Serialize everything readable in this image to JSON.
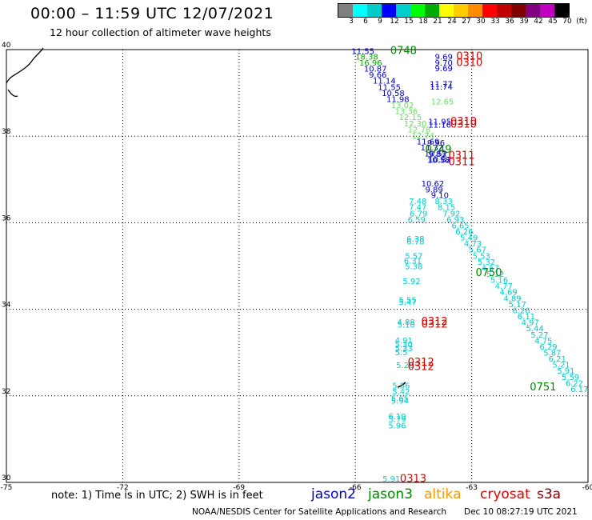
{
  "header": {
    "title": "00:00 – 11:59 UTC 12/07/2021",
    "subtitle": "12 hour collection of altimeter wave heights"
  },
  "legend": {
    "labels": [
      "3",
      "6",
      "9",
      "12",
      "15",
      "18",
      "21",
      "24",
      "27",
      "30",
      "33",
      "36",
      "39",
      "42",
      "45",
      "70",
      "(ft)"
    ],
    "colors": [
      "#808080",
      "#00ffff",
      "#00cccc",
      "#0000ff",
      "#00cdcd",
      "#00ff00",
      "#00aa00",
      "#ffff00",
      "#ffcc00",
      "#ff8c00",
      "#ff0000",
      "#c00000",
      "#800000",
      "#800080",
      "#c000c0",
      "#000000"
    ]
  },
  "map": {
    "lat_labels": [
      "40",
      "38",
      "36",
      "34",
      "32",
      "30"
    ],
    "lon_labels": [
      "-75",
      "-72",
      "-69",
      "-66",
      "-63",
      "-60"
    ],
    "extent": {
      "lon": [
        -75,
        -60
      ],
      "lat": [
        30,
        40
      ]
    }
  },
  "tracks": [
    {
      "time": "0748",
      "color": "#008800",
      "lon": -65.1,
      "lat": 39.9
    },
    {
      "time": "0749",
      "color": "#008800",
      "lon": -64.2,
      "lat": 37.62
    },
    {
      "time": "0750",
      "color": "#008800",
      "lon": -62.9,
      "lat": 34.77
    },
    {
      "time": "0751",
      "color": "#008800",
      "lon": -61.5,
      "lat": 32.13
    },
    {
      "time": "0310",
      "color": "#dd0000",
      "lon": -63.4,
      "lat": 39.77
    },
    {
      "time": "0310",
      "color": "#dd0000",
      "lon": -63.4,
      "lat": 39.62
    },
    {
      "time": "0310",
      "color": "#dd0000",
      "lon": -63.55,
      "lat": 38.26
    },
    {
      "time": "0310",
      "color": "#dd0000",
      "lon": -63.55,
      "lat": 38.2
    },
    {
      "time": "0311",
      "color": "#dd0000",
      "lon": -63.6,
      "lat": 37.48
    },
    {
      "time": "0311",
      "color": "#dd0000",
      "lon": -63.6,
      "lat": 37.33
    },
    {
      "time": "0312",
      "color": "#dd0000",
      "lon": -64.3,
      "lat": 33.64
    },
    {
      "time": "0312",
      "color": "#dd0000",
      "lon": -64.3,
      "lat": 33.58
    },
    {
      "time": "0312",
      "color": "#dd0000",
      "lon": -64.65,
      "lat": 32.7
    },
    {
      "time": "0312",
      "color": "#dd0000",
      "lon": -64.65,
      "lat": 32.6
    },
    {
      "time": "0313",
      "color": "#dd0000",
      "lon": -64.85,
      "lat": 30.01
    }
  ],
  "observations": [
    {
      "v": "11.55",
      "c": "#0000cc",
      "lon": -66.1,
      "lat": 39.9
    },
    {
      "v": "18.38",
      "c": "#00aa00",
      "lon": -66.0,
      "lat": 39.77
    },
    {
      "v": "16.96",
      "c": "#00aa00",
      "lon": -65.9,
      "lat": 39.63
    },
    {
      "v": "10.87",
      "c": "#0000cc",
      "lon": -65.78,
      "lat": 39.49
    },
    {
      "v": "9.66",
      "c": "#0000cc",
      "lon": -65.65,
      "lat": 39.35
    },
    {
      "v": "11.14",
      "c": "#0000cc",
      "lon": -65.55,
      "lat": 39.21
    },
    {
      "v": "11.55",
      "c": "#0000cc",
      "lon": -65.42,
      "lat": 39.07
    },
    {
      "v": "10.58",
      "c": "#0000cc",
      "lon": -65.32,
      "lat": 38.93
    },
    {
      "v": "11.98",
      "c": "#0000cc",
      "lon": -65.2,
      "lat": 38.79
    },
    {
      "v": "13.02",
      "c": "#66dd66",
      "lon": -65.08,
      "lat": 38.65
    },
    {
      "v": "13.36",
      "c": "#66dd66",
      "lon": -64.98,
      "lat": 38.51
    },
    {
      "v": "12.15",
      "c": "#66dd66",
      "lon": -64.88,
      "lat": 38.37
    },
    {
      "v": "12.30",
      "c": "#66dd66",
      "lon": -64.75,
      "lat": 38.23
    },
    {
      "v": "12.78",
      "c": "#66dd66",
      "lon": -64.65,
      "lat": 38.09
    },
    {
      "v": "12.74",
      "c": "#66dd66",
      "lon": -64.55,
      "lat": 37.95
    },
    {
      "v": "11.69",
      "c": "#0000cc",
      "lon": -64.42,
      "lat": 37.81
    },
    {
      "v": "11.32",
      "c": "#0000cc",
      "lon": -64.32,
      "lat": 37.67
    },
    {
      "v": "10.52",
      "c": "#0000cc",
      "lon": -64.22,
      "lat": 37.53
    },
    {
      "v": "10.82",
      "c": "#0000cc",
      "lon": -64.12,
      "lat": 37.39
    },
    {
      "v": "9.69",
      "c": "#0000cc",
      "lon": -63.95,
      "lat": 39.77
    },
    {
      "v": "9.70",
      "c": "#0000cc",
      "lon": -63.95,
      "lat": 39.63
    },
    {
      "v": "9.69",
      "c": "#0000cc",
      "lon": -63.95,
      "lat": 39.5
    },
    {
      "v": "11.77",
      "c": "#0000cc",
      "lon": -64.08,
      "lat": 39.14
    },
    {
      "v": "11.74",
      "c": "#0000cc",
      "lon": -64.08,
      "lat": 39.08
    },
    {
      "v": "12.65",
      "c": "#66dd66",
      "lon": -64.05,
      "lat": 38.73
    },
    {
      "v": "11.95",
      "c": "#0000cc",
      "lon": -64.12,
      "lat": 38.27
    },
    {
      "v": "11.16",
      "c": "#0000cc",
      "lon": -64.12,
      "lat": 38.2
    },
    {
      "v": "9.96",
      "c": "#0000cc",
      "lon": -64.15,
      "lat": 37.78
    },
    {
      "v": "9.83",
      "c": "#0000cc",
      "lon": -64.12,
      "lat": 37.52
    },
    {
      "v": "10.58",
      "c": "#0000cc",
      "lon": -64.15,
      "lat": 37.38
    },
    {
      "v": "10.62",
      "c": "#0000cc",
      "lon": -64.3,
      "lat": 36.84
    },
    {
      "v": "9.89",
      "c": "#0000cc",
      "lon": -64.2,
      "lat": 36.7
    },
    {
      "v": "9.10",
      "c": "#0000cc",
      "lon": -64.05,
      "lat": 36.57
    },
    {
      "v": "8.33",
      "c": "#00cccc",
      "lon": -63.95,
      "lat": 36.43
    },
    {
      "v": "8.15",
      "c": "#00cccc",
      "lon": -63.88,
      "lat": 36.29
    },
    {
      "v": "7.92",
      "c": "#00cccc",
      "lon": -63.75,
      "lat": 36.15
    },
    {
      "v": "6.93",
      "c": "#00cccc",
      "lon": -63.65,
      "lat": 36.01
    },
    {
      "v": "6.65",
      "c": "#00cccc",
      "lon": -63.52,
      "lat": 35.87
    },
    {
      "v": "6.26",
      "c": "#00cccc",
      "lon": -63.42,
      "lat": 35.73
    },
    {
      "v": "5.49",
      "c": "#00cccc",
      "lon": -63.3,
      "lat": 35.59
    },
    {
      "v": "4.73",
      "c": "#00cccc",
      "lon": -63.2,
      "lat": 35.45
    },
    {
      "v": "5.67",
      "c": "#00cccc",
      "lon": -63.08,
      "lat": 35.31
    },
    {
      "v": "5.53",
      "c": "#00cccc",
      "lon": -62.98,
      "lat": 35.17
    },
    {
      "v": "5.32",
      "c": "#00cccc",
      "lon": -62.85,
      "lat": 35.03
    },
    {
      "v": "4.57",
      "c": "#00cccc",
      "lon": -62.75,
      "lat": 34.89
    },
    {
      "v": "5.12",
      "c": "#00cccc",
      "lon": -62.62,
      "lat": 34.75
    },
    {
      "v": "5.16",
      "c": "#00cccc",
      "lon": -62.52,
      "lat": 34.61
    },
    {
      "v": "4.77",
      "c": "#00cccc",
      "lon": -62.4,
      "lat": 34.47
    },
    {
      "v": "4.69",
      "c": "#00cccc",
      "lon": -62.28,
      "lat": 34.33
    },
    {
      "v": "4.89",
      "c": "#00cccc",
      "lon": -62.18,
      "lat": 34.19
    },
    {
      "v": "5.17",
      "c": "#00cccc",
      "lon": -62.05,
      "lat": 34.05
    },
    {
      "v": "6.26",
      "c": "#00cccc",
      "lon": -61.95,
      "lat": 33.91
    },
    {
      "v": "6.11",
      "c": "#00cccc",
      "lon": -61.82,
      "lat": 33.77
    },
    {
      "v": "4.97",
      "c": "#00cccc",
      "lon": -61.72,
      "lat": 33.63
    },
    {
      "v": "5.44",
      "c": "#00cccc",
      "lon": -61.6,
      "lat": 33.49
    },
    {
      "v": "5.27",
      "c": "#00cccc",
      "lon": -61.48,
      "lat": 33.35
    },
    {
      "v": "4.75",
      "c": "#00cccc",
      "lon": -61.38,
      "lat": 33.21
    },
    {
      "v": "6.29",
      "c": "#00cccc",
      "lon": -61.25,
      "lat": 33.07
    },
    {
      "v": "5.87",
      "c": "#00cccc",
      "lon": -61.15,
      "lat": 32.93
    },
    {
      "v": "6.21",
      "c": "#00cccc",
      "lon": -61.02,
      "lat": 32.79
    },
    {
      "v": "5.21",
      "c": "#00cccc",
      "lon": -60.92,
      "lat": 32.65
    },
    {
      "v": "5.91",
      "c": "#00cccc",
      "lon": -60.8,
      "lat": 32.51
    },
    {
      "v": "5.59",
      "c": "#00cccc",
      "lon": -60.68,
      "lat": 32.37
    },
    {
      "v": "6.22",
      "c": "#00cccc",
      "lon": -60.58,
      "lat": 32.23
    },
    {
      "v": "6.17",
      "c": "#00cccc",
      "lon": -60.45,
      "lat": 32.09
    },
    {
      "v": "7.48",
      "c": "#00cccc",
      "lon": -64.62,
      "lat": 36.43
    },
    {
      "v": "7.47",
      "c": "#00cccc",
      "lon": -64.62,
      "lat": 36.29
    },
    {
      "v": "6.79",
      "c": "#00cccc",
      "lon": -64.6,
      "lat": 36.15
    },
    {
      "v": "6.59",
      "c": "#00cccc",
      "lon": -64.65,
      "lat": 36.01
    },
    {
      "v": "6.38",
      "c": "#00cccc",
      "lon": -64.68,
      "lat": 35.56
    },
    {
      "v": "6.78",
      "c": "#00cccc",
      "lon": -64.68,
      "lat": 35.5
    },
    {
      "v": "5.57",
      "c": "#00cccc",
      "lon": -64.72,
      "lat": 35.17
    },
    {
      "v": "6.31",
      "c": "#00cccc",
      "lon": -64.75,
      "lat": 35.06
    },
    {
      "v": "5.38",
      "c": "#00cccc",
      "lon": -64.72,
      "lat": 34.93
    },
    {
      "v": "5.92",
      "c": "#00cccc",
      "lon": -64.78,
      "lat": 34.58
    },
    {
      "v": "5.55",
      "c": "#00cccc",
      "lon": -64.88,
      "lat": 34.15
    },
    {
      "v": "5.47",
      "c": "#00cccc",
      "lon": -64.88,
      "lat": 34.1
    },
    {
      "v": "4.88",
      "c": "#00cccc",
      "lon": -64.92,
      "lat": 33.64
    },
    {
      "v": "5.10",
      "c": "#00cccc",
      "lon": -64.92,
      "lat": 33.58
    },
    {
      "v": "4.91",
      "c": "#00cccc",
      "lon": -64.98,
      "lat": 33.22
    },
    {
      "v": "5.30",
      "c": "#00cccc",
      "lon": -64.98,
      "lat": 33.12
    },
    {
      "v": "5.33",
      "c": "#00cccc",
      "lon": -64.98,
      "lat": 33.03
    },
    {
      "v": "5.5",
      "c": "#00cccc",
      "lon": -64.98,
      "lat": 32.94
    },
    {
      "v": "5.28",
      "c": "#00cccc",
      "lon": -64.95,
      "lat": 32.64
    },
    {
      "v": "5.56",
      "c": "#00cccc",
      "lon": -65.05,
      "lat": 32.17
    },
    {
      "v": "5.42",
      "c": "#00cccc",
      "lon": -65.05,
      "lat": 32.03
    },
    {
      "v": "5.65",
      "c": "#00cccc",
      "lon": -65.08,
      "lat": 31.88
    },
    {
      "v": "5.94",
      "c": "#00cccc",
      "lon": -65.08,
      "lat": 31.82
    },
    {
      "v": "6.19",
      "c": "#00cccc",
      "lon": -65.15,
      "lat": 31.46
    },
    {
      "v": "5.79",
      "c": "#00cccc",
      "lon": -65.15,
      "lat": 31.4
    },
    {
      "v": "5.96",
      "c": "#00cccc",
      "lon": -65.15,
      "lat": 31.25
    },
    {
      "v": "5.91",
      "c": "#00cccc",
      "lon": -65.3,
      "lat": 30.02
    }
  ],
  "footer": {
    "note": "note:  1) Time is in UTC; 2) SWH is in feet",
    "satellites": [
      {
        "name": "jason2",
        "color": "#0000cc"
      },
      {
        "name": "jason3",
        "color": "#008800"
      },
      {
        "name": "altika",
        "color": "#ff9900"
      },
      {
        "name": "cryosat",
        "color": "#dd0000"
      },
      {
        "name": "s3a",
        "color": "#880000"
      }
    ],
    "credit": "NOAA/NESDIS Center for Satellite Applications and Research",
    "timestamp": "Dec 10 08:27:19 UTC 2021"
  }
}
